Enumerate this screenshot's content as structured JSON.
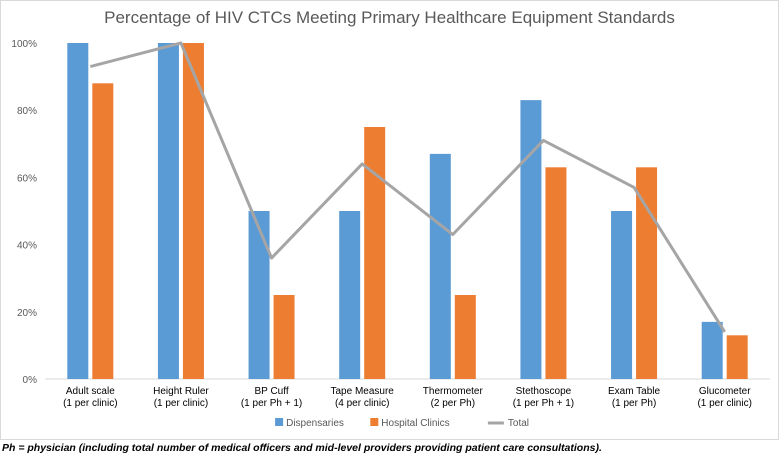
{
  "chart_data": {
    "type": "bar",
    "title": "Percentage of HIV CTCs Meeting Primary Healthcare Equipment Standards",
    "categories": [
      [
        "Adult scale",
        "(1 per clinic)"
      ],
      [
        "Height Ruler",
        "(1 per clinic)"
      ],
      [
        "BP Cuff",
        "(1 per Ph + 1)"
      ],
      [
        "Tape Measure",
        "(4 per clinic)"
      ],
      [
        "Thermometer",
        "(2 per Ph)"
      ],
      [
        "Stethoscope",
        "(1 per Ph + 1)"
      ],
      [
        "Exam Table",
        "(1 per Ph)"
      ],
      [
        "Glucometer",
        "(1 per clinic)"
      ]
    ],
    "series": [
      {
        "name": "Dispensaries",
        "type": "bar",
        "color": "#5b9bd5",
        "values": [
          100,
          100,
          50,
          50,
          67,
          83,
          50,
          17
        ]
      },
      {
        "name": "Hospital Clinics",
        "type": "bar",
        "color": "#ed7d31",
        "values": [
          88,
          100,
          25,
          75,
          25,
          63,
          63,
          13
        ]
      },
      {
        "name": "Total",
        "type": "line",
        "color": "#a5a5a5",
        "values": [
          93,
          100,
          36,
          64,
          43,
          71,
          57,
          14
        ]
      }
    ],
    "ylim": [
      0,
      100
    ],
    "yticks": [
      0,
      20,
      40,
      60,
      80,
      100
    ],
    "ytick_labels": [
      "0%",
      "20%",
      "40%",
      "60%",
      "80%",
      "100%"
    ],
    "grid": false,
    "legend_position": "bottom"
  },
  "footnote": "Ph = physician (including total number of medical officers and mid-level providers providing patient care consultations)."
}
